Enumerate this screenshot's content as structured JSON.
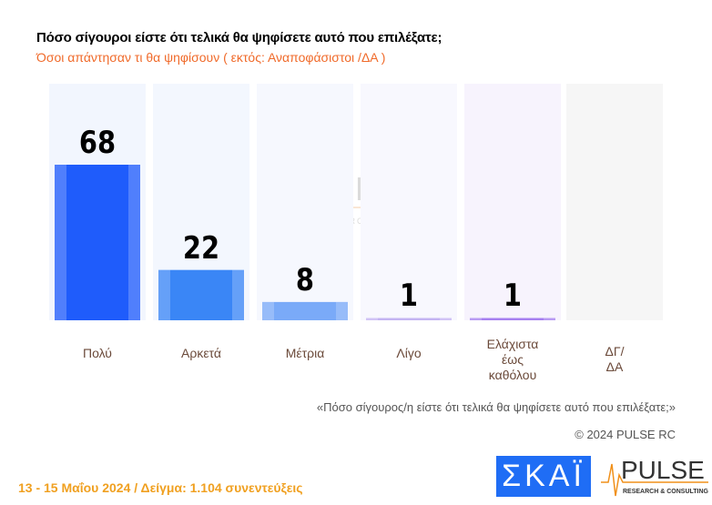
{
  "title": "Πόσο σίγουροι είστε ότι τελικά θα ψηφίσετε αυτό που επιλέξατε;",
  "subtitle": "Όσοι απάντησαν τι θα ψηφίσουν ( εκτός: Αναποφάσιστοι /ΔΑ )",
  "note": "«Πόσο σίγουρος/η είστε ότι τελικά θα ψηφίσετε αυτό που επιλέξατε;»",
  "copyright": "© 2024 PULSE RC",
  "footer": "13 - 15  Μαΐου 2024  /  Δείγμα:  1.104 συνεντεύξεις",
  "logos": {
    "skai": "ΣΚΑΪ",
    "pulse": "PULSE",
    "pulse_sub": "RESEARCH & CONSULTING"
  },
  "chart_data": {
    "type": "bar",
    "categories": [
      "Πολύ",
      "Αρκετά",
      "Μέτρια",
      "Λίγο",
      "Ελάχιστα\nέως\nκαθόλου",
      "ΔΓ/\nΔΑ"
    ],
    "values": [
      68,
      22,
      8,
      1,
      1,
      null
    ],
    "value_labels": [
      "68",
      "22",
      "8",
      "1",
      "1",
      ""
    ],
    "colors": [
      "#1f5cfb",
      "#3a86f6",
      "#7aaaf8",
      "#c4b4f2",
      "#a67ff0",
      "#cccccc"
    ],
    "ylim": [
      0,
      100
    ],
    "grid": false
  }
}
